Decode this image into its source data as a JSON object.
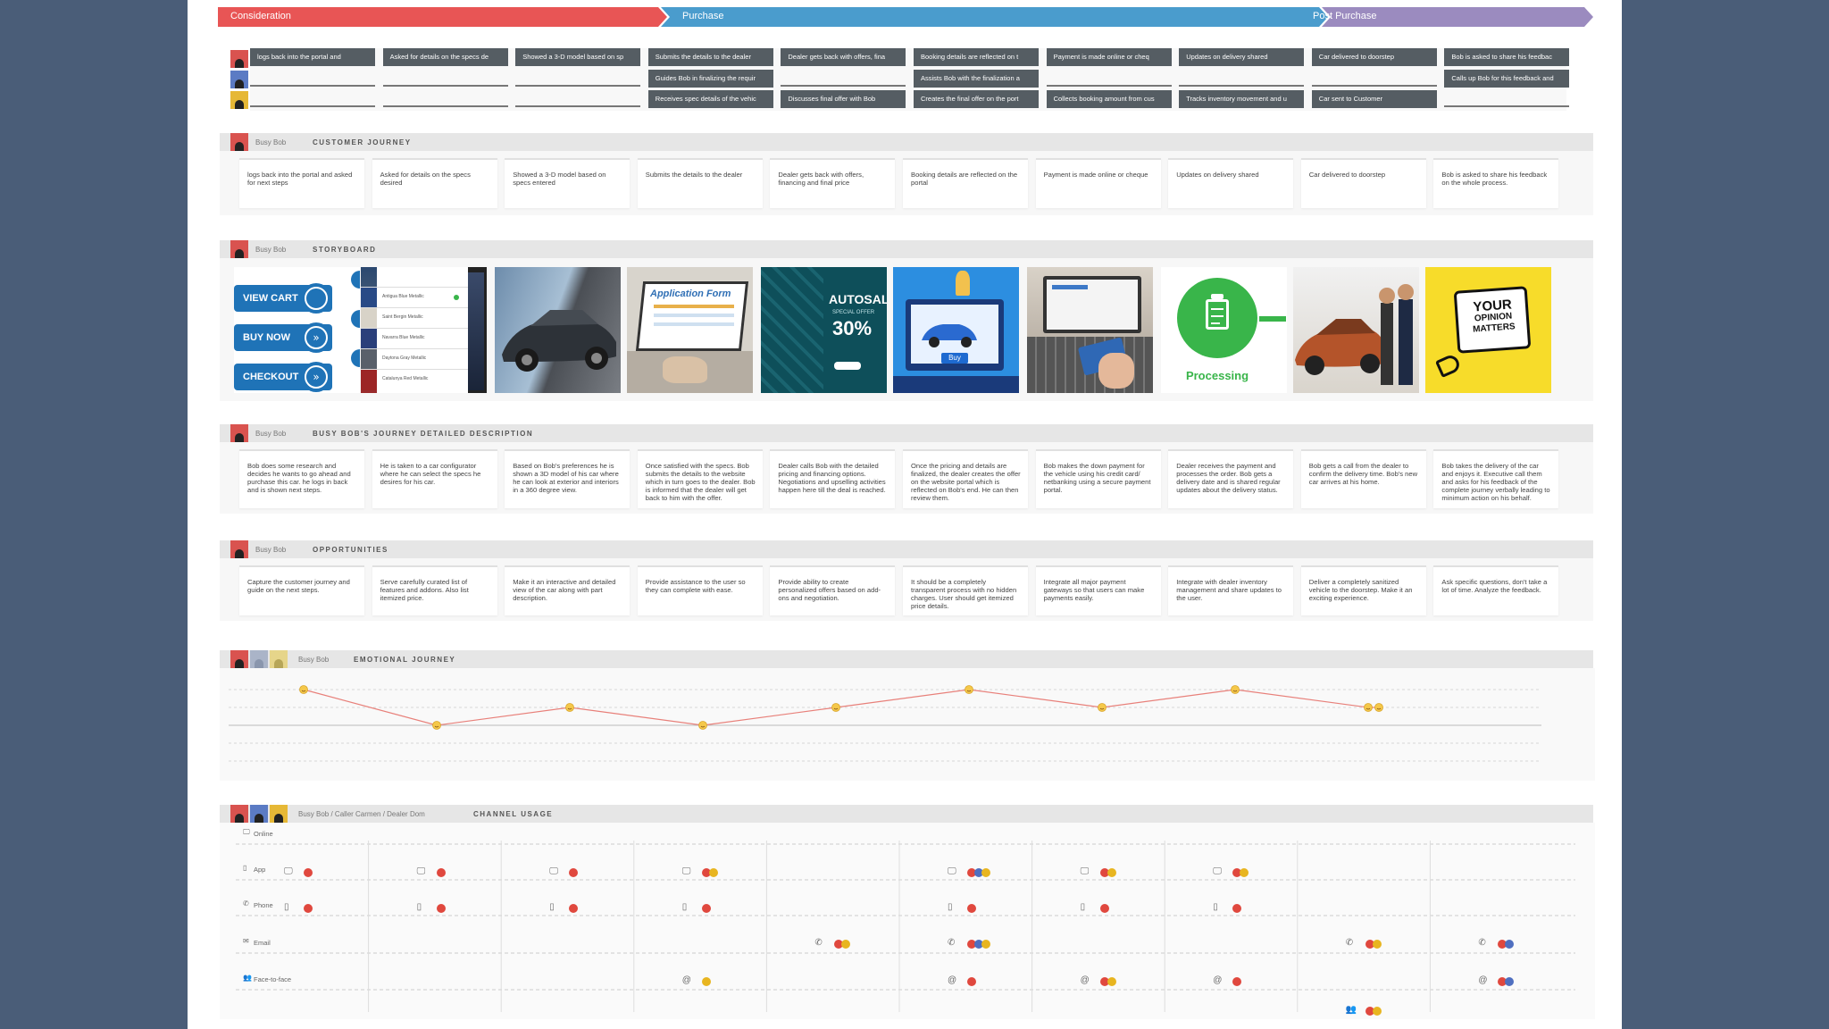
{
  "phases": [
    {
      "label": "Consideration",
      "color": "#e85555"
    },
    {
      "label": "Purchase",
      "color": "#4a9ccd"
    },
    {
      "label": "Post Purchase",
      "color": "#9b8bbf"
    }
  ],
  "lanes": {
    "customer_row": [
      "logs back into the portal and",
      "Asked for details on the specs de",
      "Showed a 3-D model based on sp",
      "Submits the details to the dealer",
      "Dealer gets back with offers, fina",
      "Booking details are reflected on t",
      "Payment is made online or cheq",
      "Updates on delivery shared",
      "Car delivered to doorstep",
      "Bob is asked to share his feedbac"
    ],
    "caller_row": [
      "",
      "",
      "",
      "Guides Bob in finalizing the requir",
      "",
      "Assists Bob with the finalization a",
      "",
      "",
      "",
      "Calls up Bob for this feedback and"
    ],
    "dealer_row": [
      "",
      "",
      "",
      "Receives spec details of the vehic",
      "Discusses final offer with Bob",
      "Creates the final offer on the port",
      "Collects booking amount from cus",
      "Tracks inventory movement and u",
      "Car sent to Customer",
      ""
    ]
  },
  "customer_journey": {
    "who": "Busy Bob",
    "title": "CUSTOMER JOURNEY",
    "cards": [
      "logs back into the portal and asked for next steps",
      "Asked for details on the specs desired",
      "Showed a 3-D model based on specs entered",
      "Submits the details to the dealer",
      "Dealer gets back with offers, financing and final price",
      "Booking details are reflected on the portal",
      "Payment is made online or cheque",
      "Updates on delivery shared",
      "Car delivered to doorstep",
      "Bob is asked to share his feedback on the whole process."
    ]
  },
  "storyboard": {
    "who": "Busy Bob",
    "title": "STORYBOARD",
    "cart_buttons": [
      "VIEW CART",
      "BUY NOW",
      "CHECKOUT"
    ],
    "paints": [
      "Antigua Blue Metallic",
      "Saint Bergin Metallic",
      "Navarra Blue Metallic",
      "Daytona Gray Metallic",
      "Catalunya Red Metallic"
    ],
    "app_form_title": "Application Form",
    "autosale": {
      "title": "AUTOSALE",
      "sub": "SPECIAL OFFER",
      "pct": "30%"
    },
    "buy_label": "Buy",
    "processing_label": "Processing",
    "opinion_lines": [
      "YOUR",
      "OPINION",
      "MATTERS"
    ]
  },
  "detailed": {
    "who": "Busy Bob",
    "title": "BUSY BOB'S JOURNEY DETAILED DESCRIPTION",
    "cards": [
      "Bob does some research and decides he wants to go ahead and purchase this car. he logs in back and is shown next steps.",
      "He is taken to a car configurator where he can select the specs he desires for his car.",
      "Based on Bob's preferences he is shown a 3D model of his car where he can look at exterior and interiors in a 360 degree view.",
      "Once satisfied with the specs. Bob submits the details to the website which in turn goes to the dealer. Bob is informed that the dealer will get back to him with the offer.",
      "Dealer calls Bob with the detailed pricing and financing options. Negotiations and upselling activities happen here till the deal is reached.",
      "Once the pricing and details are finalized, the dealer creates the offer on the website portal which is reflected on Bob's end. He can then review them.",
      "Bob makes the down payment for the vehicle using his credit card/ netbanking using a secure payment portal.",
      "Dealer receives the payment and processes the order. Bob gets a delivery date and is shared regular updates about the delivery status.",
      "Bob gets a call from the dealer to confirm the delivery time. Bob's new car arrives at his home.",
      "Bob takes the delivery of the car and enjoys it. Executive call them and asks for his feedback of the complete journey verbally leading to minimum action on his behalf."
    ]
  },
  "opportunities": {
    "who": "Busy Bob",
    "title": "OPPORTUNITIES",
    "cards": [
      "Capture the customer journey and guide on the next steps.",
      "Serve carefully curated list of features and addons. Also list itemized price.",
      "Make it an interactive and detailed view of the car along with part description.",
      "Provide assistance to the user so they can complete with ease.",
      "Provide ability to create personalized offers based on add-ons and negotiation.",
      "It should be a completely transparent process with no hidden charges. User should get itemized price details.",
      "Integrate all major payment gateways so that users can make payments easily.",
      "Integrate with dealer inventory management and share updates to the user.",
      "Deliver a completely sanitized vehicle to the doorstep. Make it an exciting experience.",
      "Ask specific questions, don't take a lot of time. Analyze the feedback."
    ]
  },
  "emotional": {
    "who": "Busy Bob",
    "title": "EMOTIONAL JOURNEY",
    "levels": [
      2,
      0,
      1,
      0,
      1,
      2,
      1,
      2,
      1
    ],
    "first_level": 2,
    "note": "levels: 2=high(happy) 1=mid 0=low"
  },
  "channels": {
    "who": "Busy Bob / Caller Carmen / Dealer Dom",
    "title": "CHANNEL USAGE",
    "rows": [
      "Online",
      "App",
      "Phone",
      "Email",
      "Face-to-face"
    ],
    "colors": {
      "r": "#e0483e",
      "b": "#4f6fc0",
      "y": "#e8b520"
    },
    "entries": [
      {
        "row": 0,
        "col": 0,
        "icon": "monitor",
        "dots": [
          "r"
        ]
      },
      {
        "row": 0,
        "col": 1,
        "icon": "monitor",
        "dots": [
          "r"
        ]
      },
      {
        "row": 0,
        "col": 2,
        "icon": "monitor",
        "dots": [
          "r"
        ]
      },
      {
        "row": 0,
        "col": 3,
        "icon": "monitor",
        "dots": [
          "r",
          "y"
        ]
      },
      {
        "row": 0,
        "col": 5,
        "icon": "monitor",
        "dots": [
          "r",
          "b",
          "y"
        ]
      },
      {
        "row": 0,
        "col": 6,
        "icon": "monitor",
        "dots": [
          "r",
          "y"
        ]
      },
      {
        "row": 0,
        "col": 7,
        "icon": "monitor",
        "dots": [
          "r",
          "y"
        ]
      },
      {
        "row": 1,
        "col": 0,
        "icon": "phone-app",
        "dots": [
          "r"
        ]
      },
      {
        "row": 1,
        "col": 1,
        "icon": "phone-app",
        "dots": [
          "r"
        ]
      },
      {
        "row": 1,
        "col": 2,
        "icon": "phone-app",
        "dots": [
          "r"
        ]
      },
      {
        "row": 1,
        "col": 3,
        "icon": "phone-app",
        "dots": [
          "r"
        ]
      },
      {
        "row": 1,
        "col": 5,
        "icon": "phone-app",
        "dots": [
          "r"
        ]
      },
      {
        "row": 1,
        "col": 6,
        "icon": "phone-app",
        "dots": [
          "r"
        ]
      },
      {
        "row": 1,
        "col": 7,
        "icon": "phone-app",
        "dots": [
          "r"
        ]
      },
      {
        "row": 2,
        "col": 4,
        "icon": "handset",
        "dots": [
          "r",
          "y"
        ]
      },
      {
        "row": 2,
        "col": 5,
        "icon": "handset",
        "dots": [
          "r",
          "b",
          "y"
        ]
      },
      {
        "row": 2,
        "col": 8,
        "icon": "handset",
        "dots": [
          "r",
          "y"
        ]
      },
      {
        "row": 2,
        "col": 9,
        "icon": "handset",
        "dots": [
          "r",
          "b"
        ]
      },
      {
        "row": 3,
        "col": 3,
        "icon": "at",
        "dots": [
          "y"
        ]
      },
      {
        "row": 3,
        "col": 5,
        "icon": "at",
        "dots": [
          "r"
        ]
      },
      {
        "row": 3,
        "col": 6,
        "icon": "at",
        "dots": [
          "r",
          "y"
        ]
      },
      {
        "row": 3,
        "col": 7,
        "icon": "at",
        "dots": [
          "r"
        ]
      },
      {
        "row": 3,
        "col": 9,
        "icon": "at",
        "dots": [
          "r",
          "b"
        ]
      },
      {
        "row": 4,
        "col": 8,
        "icon": "people",
        "dots": [
          "r",
          "y"
        ]
      }
    ]
  }
}
